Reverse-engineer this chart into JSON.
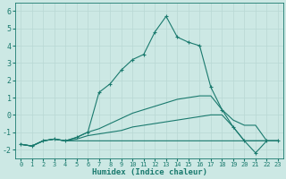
{
  "xlabel": "Humidex (Indice chaleur)",
  "background_color": "#cce8e4",
  "grid_color": "#b8d8d4",
  "line_color": "#1a7a6e",
  "xlim": [
    -0.5,
    23.5
  ],
  "ylim": [
    -2.5,
    6.5
  ],
  "xticks": [
    0,
    1,
    2,
    3,
    4,
    5,
    6,
    7,
    8,
    9,
    10,
    11,
    12,
    13,
    14,
    15,
    16,
    17,
    18,
    19,
    20,
    21,
    22,
    23
  ],
  "yticks": [
    -2,
    -1,
    0,
    1,
    2,
    3,
    4,
    5,
    6
  ],
  "series": [
    {
      "x": [
        0,
        1,
        2,
        3,
        4,
        5,
        6,
        7,
        8,
        9,
        10,
        11,
        12,
        13,
        14,
        15,
        16,
        17,
        18,
        19,
        20,
        21,
        22,
        23
      ],
      "y": [
        -1.7,
        -1.8,
        -1.5,
        -1.4,
        -1.5,
        -1.5,
        -1.5,
        -1.5,
        -1.5,
        -1.5,
        -1.5,
        -1.5,
        -1.5,
        -1.5,
        -1.5,
        -1.5,
        -1.5,
        -1.5,
        -1.5,
        -1.5,
        -1.5,
        -1.5,
        -1.5,
        -1.5
      ],
      "marker": false
    },
    {
      "x": [
        0,
        1,
        2,
        3,
        4,
        5,
        6,
        7,
        8,
        9,
        10,
        11,
        12,
        13,
        14,
        15,
        16,
        17,
        18,
        19,
        20,
        21,
        22,
        23
      ],
      "y": [
        -1.7,
        -1.8,
        -1.5,
        -1.4,
        -1.5,
        -1.4,
        -1.2,
        -1.1,
        -1.0,
        -0.9,
        -0.7,
        -0.6,
        -0.5,
        -0.4,
        -0.3,
        -0.2,
        -0.1,
        0.0,
        0.0,
        -0.7,
        -1.5,
        -1.5,
        -1.5,
        -1.5
      ],
      "marker": false
    },
    {
      "x": [
        0,
        1,
        2,
        3,
        4,
        5,
        6,
        7,
        8,
        9,
        10,
        11,
        12,
        13,
        14,
        15,
        16,
        17,
        18,
        19,
        20,
        21,
        22,
        23
      ],
      "y": [
        -1.7,
        -1.8,
        -1.5,
        -1.4,
        -1.5,
        -1.3,
        -1.0,
        -0.8,
        -0.5,
        -0.2,
        0.1,
        0.3,
        0.5,
        0.7,
        0.9,
        1.0,
        1.1,
        1.1,
        0.3,
        -0.3,
        -0.6,
        -0.6,
        -1.5,
        -1.5
      ],
      "marker": false
    },
    {
      "x": [
        0,
        1,
        2,
        3,
        4,
        5,
        6,
        7,
        8,
        9,
        10,
        11,
        12,
        13,
        14,
        15,
        16,
        17,
        18,
        19,
        20,
        21,
        22,
        23
      ],
      "y": [
        -1.7,
        -1.8,
        -1.5,
        -1.4,
        -1.5,
        -1.3,
        -1.0,
        1.3,
        1.8,
        2.6,
        3.2,
        3.5,
        4.8,
        5.7,
        4.5,
        4.2,
        4.0,
        1.6,
        0.3,
        -0.7,
        -1.5,
        -2.2,
        -1.5,
        -1.5
      ],
      "marker": true
    }
  ]
}
